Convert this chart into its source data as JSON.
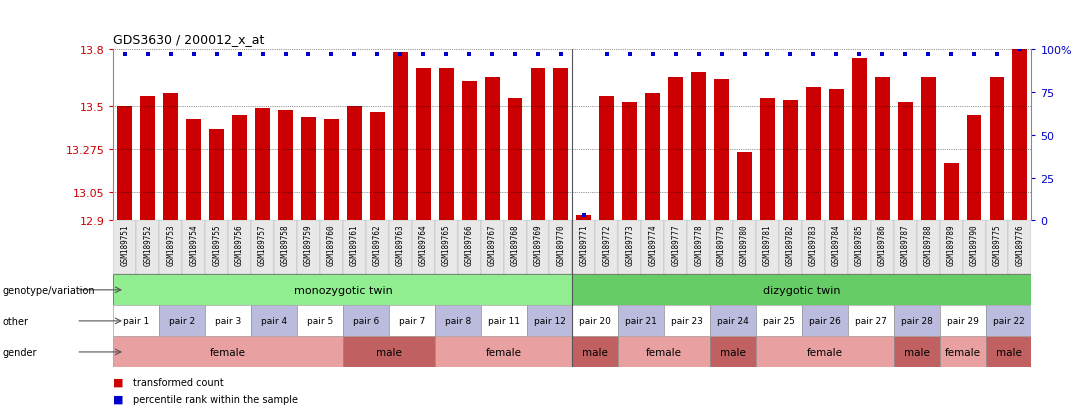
{
  "title": "GDS3630 / 200012_x_at",
  "samples": [
    "GSM189751",
    "GSM189752",
    "GSM189753",
    "GSM189754",
    "GSM189755",
    "GSM189756",
    "GSM189757",
    "GSM189758",
    "GSM189759",
    "GSM189760",
    "GSM189761",
    "GSM189762",
    "GSM189763",
    "GSM189764",
    "GSM189765",
    "GSM189766",
    "GSM189767",
    "GSM189768",
    "GSM189769",
    "GSM189770",
    "GSM189771",
    "GSM189772",
    "GSM189773",
    "GSM189774",
    "GSM189777",
    "GSM189778",
    "GSM189779",
    "GSM189780",
    "GSM189781",
    "GSM189782",
    "GSM189783",
    "GSM189784",
    "GSM189785",
    "GSM189786",
    "GSM189787",
    "GSM189788",
    "GSM189789",
    "GSM189790",
    "GSM189775",
    "GSM189776"
  ],
  "bar_values": [
    13.5,
    13.55,
    13.57,
    13.43,
    13.38,
    13.45,
    13.49,
    13.48,
    13.44,
    13.43,
    13.5,
    13.47,
    13.78,
    13.7,
    13.7,
    13.63,
    13.65,
    13.54,
    13.7,
    13.7,
    12.93,
    13.55,
    13.52,
    13.57,
    13.65,
    13.68,
    13.64,
    13.26,
    13.54,
    13.53,
    13.6,
    13.59,
    13.75,
    13.65,
    13.52,
    13.65,
    13.2,
    13.45,
    13.65,
    13.8
  ],
  "percentile_values": [
    97,
    97,
    97,
    97,
    97,
    97,
    97,
    97,
    97,
    97,
    97,
    97,
    97,
    97,
    97,
    97,
    97,
    97,
    97,
    97,
    3,
    97,
    97,
    97,
    97,
    97,
    97,
    97,
    97,
    97,
    97,
    97,
    97,
    97,
    97,
    97,
    97,
    97,
    97,
    100
  ],
  "ylim_left": [
    12.9,
    13.8
  ],
  "ylim_right": [
    0,
    100
  ],
  "yticks_left": [
    12.9,
    13.05,
    13.275,
    13.5,
    13.8
  ],
  "yticks_right": [
    0,
    25,
    50,
    75,
    100
  ],
  "bar_color": "#cc0000",
  "dot_color": "#0000cc",
  "background_color": "#ffffff",
  "genotype_groups": [
    {
      "label": "monozygotic twin",
      "start": 0,
      "end": 19,
      "color": "#90ee90"
    },
    {
      "label": "dizygotic twin",
      "start": 20,
      "end": 39,
      "color": "#66cc66"
    }
  ],
  "pair_spans": [
    {
      "label": "pair 1",
      "start": 0,
      "end": 1,
      "alt": 0
    },
    {
      "label": "pair 2",
      "start": 2,
      "end": 3,
      "alt": 1
    },
    {
      "label": "pair 3",
      "start": 4,
      "end": 5,
      "alt": 0
    },
    {
      "label": "pair 4",
      "start": 6,
      "end": 7,
      "alt": 1
    },
    {
      "label": "pair 5",
      "start": 8,
      "end": 9,
      "alt": 0
    },
    {
      "label": "pair 6",
      "start": 10,
      "end": 11,
      "alt": 1
    },
    {
      "label": "pair 7",
      "start": 12,
      "end": 13,
      "alt": 0
    },
    {
      "label": "pair 8",
      "start": 14,
      "end": 15,
      "alt": 1
    },
    {
      "label": "pair 11",
      "start": 16,
      "end": 17,
      "alt": 0
    },
    {
      "label": "pair 12",
      "start": 18,
      "end": 19,
      "alt": 1
    },
    {
      "label": "pair 20",
      "start": 20,
      "end": 21,
      "alt": 0
    },
    {
      "label": "pair 21",
      "start": 22,
      "end": 23,
      "alt": 1
    },
    {
      "label": "pair 23",
      "start": 24,
      "end": 25,
      "alt": 0
    },
    {
      "label": "pair 24",
      "start": 26,
      "end": 27,
      "alt": 1
    },
    {
      "label": "pair 25",
      "start": 28,
      "end": 29,
      "alt": 0
    },
    {
      "label": "pair 26",
      "start": 30,
      "end": 31,
      "alt": 1
    },
    {
      "label": "pair 27",
      "start": 32,
      "end": 33,
      "alt": 0
    },
    {
      "label": "pair 28",
      "start": 34,
      "end": 35,
      "alt": 1
    },
    {
      "label": "pair 29",
      "start": 36,
      "end": 37,
      "alt": 0
    },
    {
      "label": "pair 22",
      "start": 38,
      "end": 39,
      "alt": 1
    }
  ],
  "gender_spans": [
    {
      "label": "female",
      "start": 0,
      "end": 9,
      "color": "#e8a0a0"
    },
    {
      "label": "male",
      "start": 10,
      "end": 13,
      "color": "#c06060"
    },
    {
      "label": "female",
      "start": 14,
      "end": 19,
      "color": "#e8a0a0"
    },
    {
      "label": "male",
      "start": 20,
      "end": 21,
      "color": "#c06060"
    },
    {
      "label": "female",
      "start": 22,
      "end": 25,
      "color": "#e8a0a0"
    },
    {
      "label": "male",
      "start": 26,
      "end": 27,
      "color": "#c06060"
    },
    {
      "label": "female",
      "start": 28,
      "end": 33,
      "color": "#e8a0a0"
    },
    {
      "label": "male",
      "start": 34,
      "end": 35,
      "color": "#c06060"
    },
    {
      "label": "female",
      "start": 36,
      "end": 37,
      "color": "#e8a0a0"
    },
    {
      "label": "male",
      "start": 38,
      "end": 39,
      "color": "#c06060"
    }
  ],
  "pair_color_even": "#ffffff",
  "pair_color_odd": "#bbbbdd",
  "separator_mono_di": 19.5,
  "row_labels": [
    "genotype/variation",
    "other",
    "gender"
  ],
  "legend_items": [
    {
      "color": "#cc0000",
      "label": "transformed count"
    },
    {
      "color": "#0000cc",
      "label": "percentile rank within the sample"
    }
  ]
}
